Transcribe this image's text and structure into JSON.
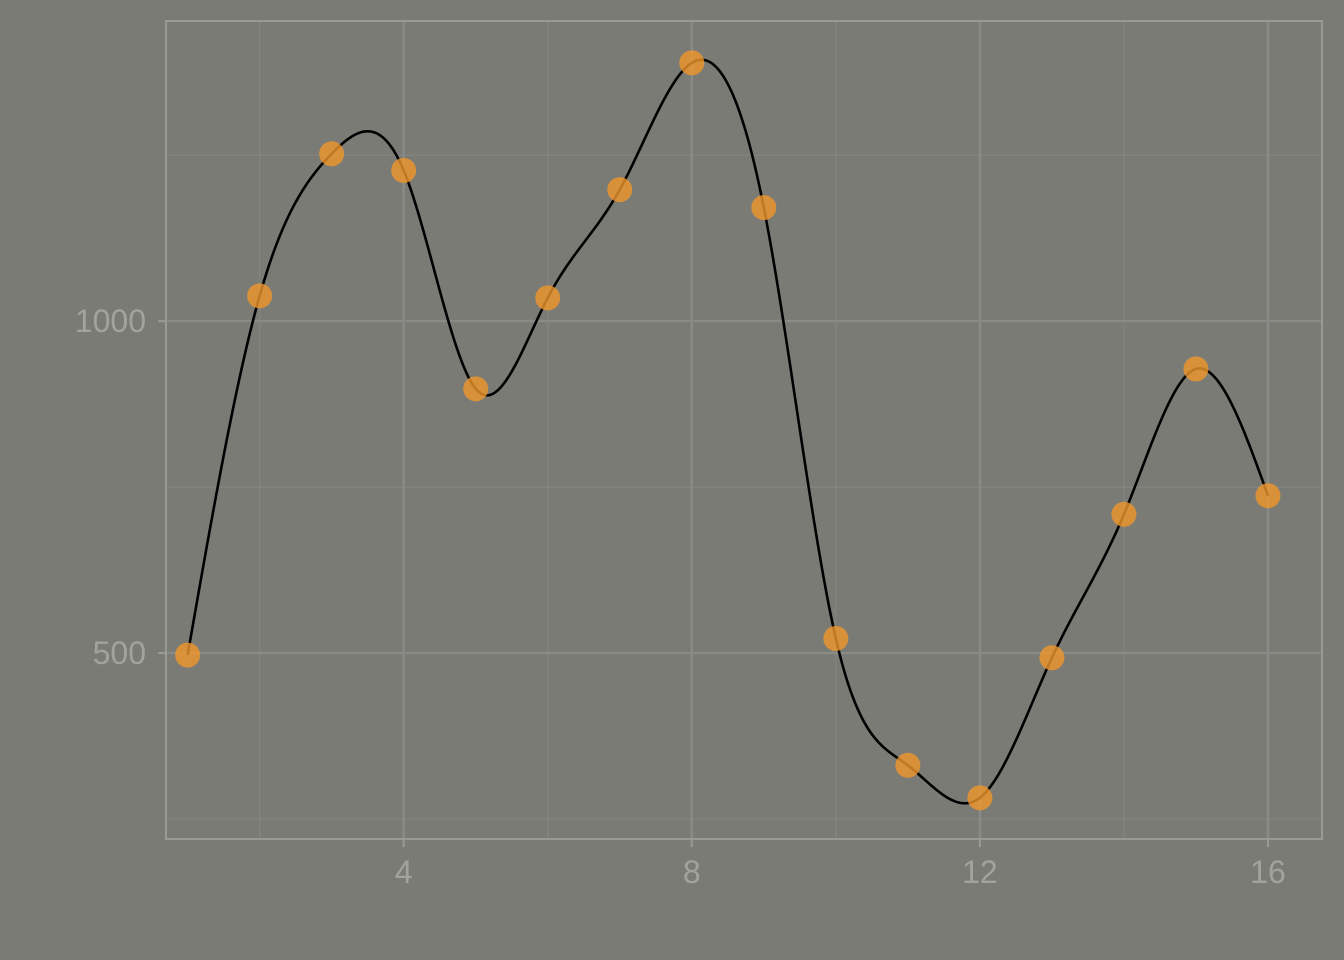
{
  "colors": {
    "background": "#7b7b76",
    "panel_border": "#9a9a95",
    "grid_major": "#8a8a86",
    "grid_minor": "#848480",
    "tick_text": "#a3a39d",
    "line": "#000000",
    "point_fill": "#f0962a",
    "point_opacity": 0.8
  },
  "chart_data": {
    "type": "scatter",
    "smooth_line": true,
    "x": [
      1,
      2,
      3,
      4,
      5,
      6,
      7,
      8,
      9,
      10,
      11,
      12,
      13,
      14,
      15,
      16
    ],
    "y": [
      497,
      1038,
      1252,
      1227,
      898,
      1035,
      1198,
      1389,
      1171,
      522,
      331,
      282,
      493,
      709,
      928,
      737
    ],
    "xlim": [
      0.7,
      16.75
    ],
    "ylim": [
      220,
      1452
    ],
    "x_ticks": [
      4,
      8,
      12,
      16
    ],
    "x_tick_labels": [
      "4",
      "8",
      "12",
      "16"
    ],
    "x_minor_ticks": [
      2,
      6,
      10,
      14
    ],
    "y_ticks": [
      500,
      1000
    ],
    "y_tick_labels": [
      "500",
      "1000"
    ],
    "y_minor_ticks": [
      250,
      750,
      1250
    ],
    "grid": true,
    "legend": "none",
    "title": "",
    "xlabel": "",
    "ylabel": ""
  }
}
